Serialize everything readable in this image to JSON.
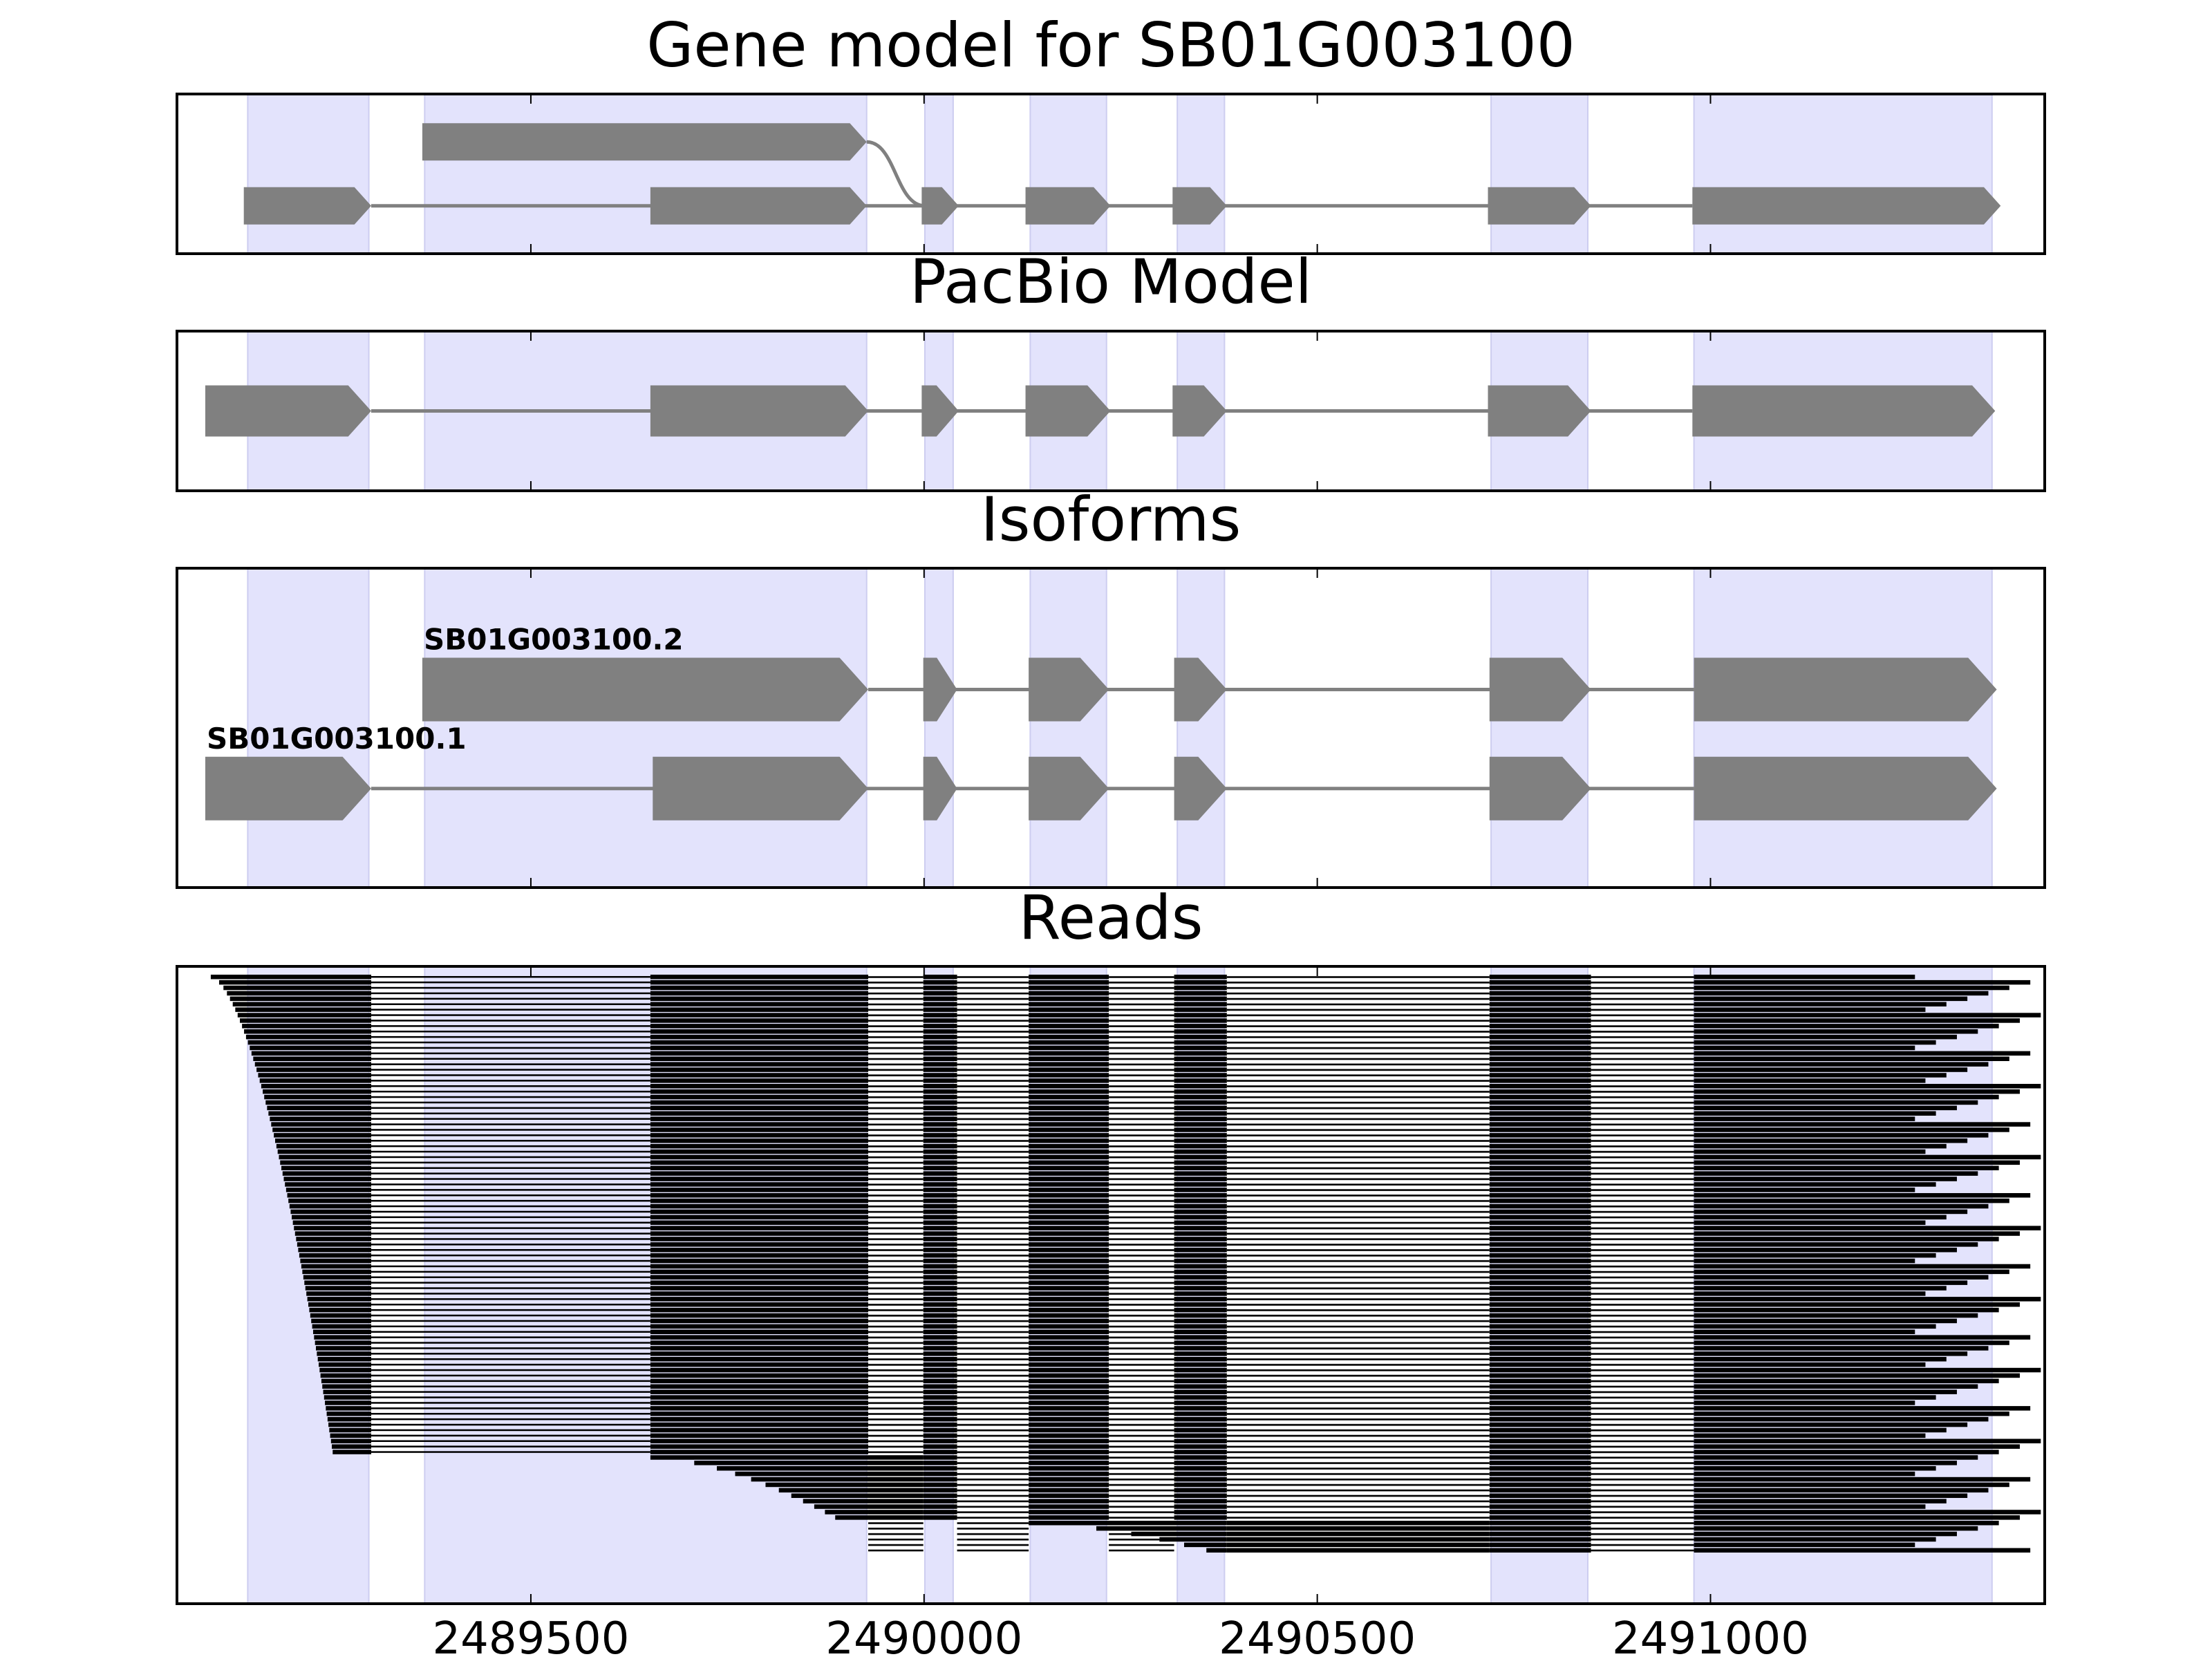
{
  "chart_data": {
    "type": "gene-structure",
    "xlim": [
      2489050,
      2491425
    ],
    "x_ticks": [
      2489500,
      2490000,
      2490500,
      2491000
    ],
    "shade_color": "#e3e3fc",
    "feature_color": "#808080",
    "read_color": "#000000",
    "shaded_regions": [
      [
        2489140,
        2489294
      ],
      [
        2489365,
        2489927
      ],
      [
        2490001,
        2490037
      ],
      [
        2490135,
        2490232
      ],
      [
        2490322,
        2490382
      ],
      [
        2490721,
        2490844
      ],
      [
        2490979,
        2491358
      ]
    ],
    "panels": [
      {
        "title": "Gene model for SB01G003100",
        "branch_link": {
          "from_x": 2489927,
          "to_x": 2490001
        },
        "rows": [
          {
            "level": 0.7,
            "segments": [
              [
                2489362,
                2489927
              ]
            ]
          },
          {
            "level": 0.3,
            "segments": [
              [
                2489135,
                2489297
              ],
              [
                2489652,
                2489927
              ],
              [
                2489997,
                2490044
              ],
              [
                2490129,
                2490237
              ],
              [
                2490316,
                2490385
              ],
              [
                2490717,
                2490848
              ],
              [
                2490977,
                2491369
              ]
            ]
          }
        ]
      },
      {
        "title": "PacBio Model",
        "rows": [
          {
            "level": 0.5,
            "segments": [
              [
                2489086,
                2489297
              ],
              [
                2489652,
                2489929
              ],
              [
                2489997,
                2490044
              ],
              [
                2490129,
                2490237
              ],
              [
                2490316,
                2490385
              ],
              [
                2490717,
                2490848
              ],
              [
                2490977,
                2491362
              ]
            ]
          }
        ]
      },
      {
        "title": "Isoforms",
        "rows": [
          {
            "label": "SB01G003100.2",
            "level": 0.62,
            "segments": [
              [
                2489362,
                2489929
              ],
              [
                2489999,
                2490042
              ],
              [
                2490133,
                2490235
              ],
              [
                2490318,
                2490385
              ],
              [
                2490719,
                2490848
              ],
              [
                2490979,
                2491364
              ]
            ]
          },
          {
            "label": "SB01G003100.1",
            "level": 0.31,
            "segments": [
              [
                2489086,
                2489297
              ],
              [
                2489655,
                2489929
              ],
              [
                2489999,
                2490042
              ],
              [
                2490133,
                2490235
              ],
              [
                2490318,
                2490385
              ],
              [
                2490719,
                2490848
              ],
              [
                2490979,
                2491364
              ]
            ]
          }
        ]
      },
      {
        "title": "Reads",
        "read_groups": [
          {
            "count": 88,
            "start_from": 2489093,
            "start_to": 2489248,
            "segments": [
              [
                2489297,
                2489652
              ],
              [
                2489652,
                2489929
              ],
              [
                2489999,
                2490042
              ],
              [
                2490133,
                2490235
              ],
              [
                2490318,
                2490385
              ],
              [
                2490719,
                2490848
              ],
              [
                2490979,
                2491330
              ]
            ]
          },
          {
            "count": 12,
            "start_from": 2489652,
            "start_to": 2489887,
            "segments": [
              [
                2489929,
                2489999
              ],
              [
                2489999,
                2490042
              ],
              [
                2490133,
                2490235
              ],
              [
                2490318,
                2490385
              ],
              [
                2490719,
                2490848
              ],
              [
                2490979,
                2491330
              ]
            ]
          },
          {
            "count": 6,
            "start_from": 2490133,
            "start_to": 2490359,
            "segments": [
              [
                2490385,
                2490719
              ],
              [
                2490719,
                2490848
              ],
              [
                2490979,
                2491300
              ]
            ]
          }
        ],
        "read_end_range": [
          2491260,
          2491420
        ]
      }
    ]
  }
}
